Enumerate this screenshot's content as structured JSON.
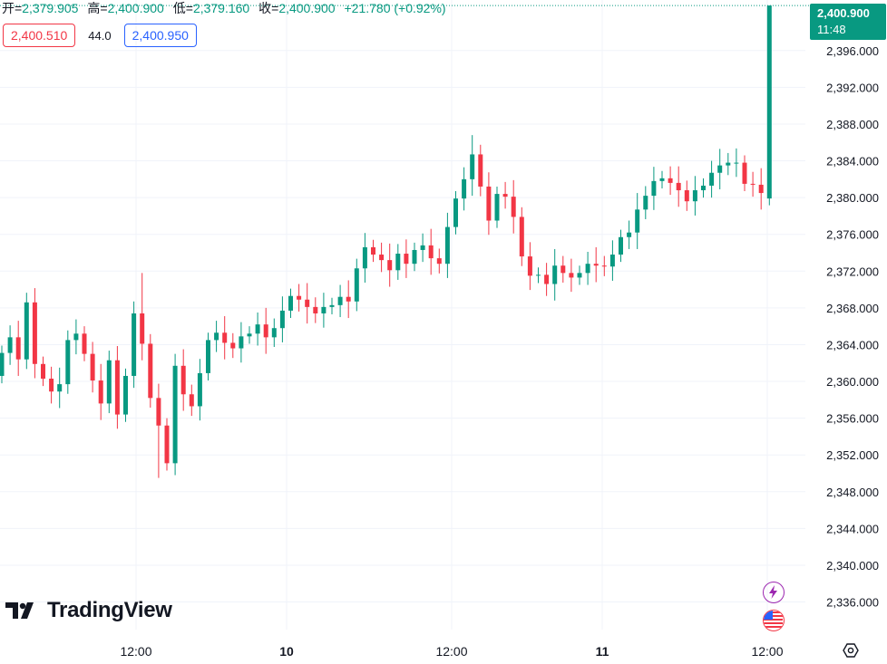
{
  "header": {
    "open_label": "开=",
    "open_value": "2,379.905",
    "high_label": "高=",
    "high_value": "2,400.900",
    "low_label": "低=",
    "low_value": "2,379.160",
    "close_label": "收=",
    "close_value": "2,400.900",
    "change": "+21.780 (+0.92%)"
  },
  "quotes": {
    "bid": "2,400.510",
    "spread": "44.0",
    "ask": "2,400.950"
  },
  "last_price_tag": {
    "price": "2,400.900",
    "time": "11:48"
  },
  "branding": {
    "name": "TradingView"
  },
  "icons": {
    "logo": "tradingview-logo-icon",
    "bolt": "lightning-bolt-icon",
    "flag": "us-flag-icon",
    "settings": "gear-icon"
  },
  "colors": {
    "up": "#089981",
    "down": "#f23645",
    "grid": "#f0f3fa",
    "text": "#131722",
    "bolt": "#9c27b0"
  },
  "chart_data": {
    "type": "candlestick",
    "title": "",
    "xlabel": "",
    "ylabel": "",
    "ylim": [
      2333,
      2401.5
    ],
    "y_ticks": [
      "2,396.000",
      "2,392.000",
      "2,388.000",
      "2,384.000",
      "2,380.000",
      "2,376.000",
      "2,372.000",
      "2,368.000",
      "2,364.000",
      "2,360.000",
      "2,356.000",
      "2,352.000",
      "2,348.000",
      "2,344.000",
      "2,340.000",
      "2,336.000"
    ],
    "x_ticks": [
      "12:00",
      "10",
      "12:00",
      "11",
      "12:00"
    ],
    "last_price": 2400.9,
    "grid": true,
    "series": [
      {
        "values": [
          2363.1,
          2364.8,
          2362.4,
          2368.6,
          2361.9,
          2360.3,
          2358.9,
          2359.7,
          2364.5,
          2365.2,
          2363.0,
          2360.1,
          2357.6,
          2362.3,
          2356.4,
          2360.6,
          2367.4,
          2364.1,
          2358.2,
          2355.2,
          2351.1,
          2361.7,
          2358.6,
          2357.3,
          2360.9,
          2364.5,
          2365.3,
          2364.2,
          2363.6,
          2364.9,
          2365.2,
          2366.2,
          2364.8,
          2365.8,
          2367.7,
          2369.3,
          2368.9,
          2368.1,
          2367.4,
          2368.1,
          2368.3,
          2369.2,
          2368.7,
          2372.3,
          2374.6,
          2373.8,
          2373.2,
          2372.1,
          2373.9,
          2372.8,
          2374.3,
          2374.8,
          2373.4,
          2372.8,
          2376.8,
          2379.9,
          2382.0,
          2384.7,
          2381.2,
          2377.5,
          2380.4,
          2380.1,
          2377.9,
          2373.6,
          2371.5,
          2371.6,
          2370.6,
          2372.6,
          2371.8,
          2371.3,
          2371.8,
          2372.8,
          2372.6,
          2372.5,
          2373.8,
          2375.7,
          2376.2,
          2378.7,
          2380.2,
          2381.8,
          2382.1,
          2381.6,
          2380.8,
          2379.6,
          2380.8,
          2381.3,
          2382.7,
          2383.5,
          2383.8,
          2383.8,
          2381.5,
          2381.4,
          2380.5,
          2400.9
        ]
      }
    ]
  }
}
